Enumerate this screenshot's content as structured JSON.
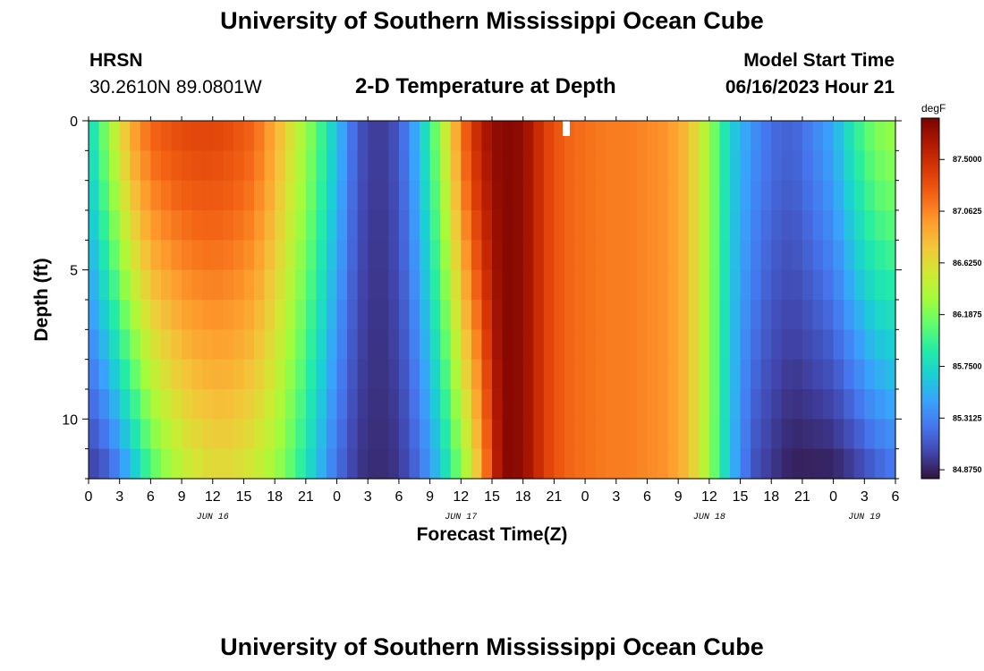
{
  "page": {
    "title_top": "University of Southern Mississippi Ocean Cube",
    "title_bottom": "University of Southern Mississippi Ocean Cube",
    "station": "HRSN",
    "coords": "30.2610N  89.0801W",
    "subtitle": "2-D Temperature at Depth",
    "model_start_label": "Model Start Time",
    "model_start_value": "06/16/2023 Hour 21"
  },
  "chart_data": {
    "type": "heatmap",
    "title": "2-D Temperature at Depth",
    "xlabel": "Forecast Time(Z)",
    "ylabel": "Depth (ft)",
    "x_hours_range": [
      0,
      78
    ],
    "x_tick_step_hours": 3,
    "x_tick_labels": [
      "0",
      "3",
      "6",
      "9",
      "12",
      "15",
      "18",
      "21",
      "0",
      "3",
      "6",
      "9",
      "12",
      "15",
      "18",
      "21",
      "0",
      "3",
      "6",
      "9",
      "12",
      "15",
      "18",
      "21",
      "0",
      "3",
      "6"
    ],
    "date_labels": [
      {
        "text": "JUN 16",
        "at_hour": 12
      },
      {
        "text": "JUN 17",
        "at_hour": 36
      },
      {
        "text": "JUN 18",
        "at_hour": 60
      },
      {
        "text": "JUN 19",
        "at_hour": 75
      }
    ],
    "y_range": [
      0,
      12
    ],
    "y_tick_labels": [
      "0",
      "5",
      "10"
    ],
    "y_tick_values": [
      0,
      5,
      10
    ],
    "colorbar": {
      "unit": "degF",
      "min": 84.8,
      "max": 87.85,
      "tick_labels": [
        "84.8750",
        "85.3125",
        "85.7500",
        "86.1875",
        "86.6250",
        "87.0625",
        "87.5000"
      ],
      "tick_values": [
        84.875,
        85.3125,
        85.75,
        86.1875,
        86.625,
        87.0625,
        87.5
      ],
      "colormap": [
        "#30123b",
        "#4145ab",
        "#4675ed",
        "#39a2fc",
        "#1bcfd4",
        "#24eca6",
        "#61fc6c",
        "#a4fc3b",
        "#d1e834",
        "#f3c63a",
        "#fe9b2d",
        "#f36315",
        "#d93806",
        "#b11901",
        "#7a0402"
      ]
    },
    "profile": {
      "depth_ft": [
        0,
        1,
        2,
        3,
        4,
        5,
        6,
        7,
        8,
        9,
        10,
        11,
        12
      ],
      "time_hours": [
        0,
        2,
        4,
        6,
        8,
        10,
        12,
        14,
        16,
        18,
        20,
        22,
        24,
        26,
        28,
        30,
        32,
        34,
        36,
        37,
        38,
        39,
        40,
        41,
        42,
        43,
        44,
        46,
        48,
        50,
        52,
        54,
        56,
        58,
        60,
        62,
        64,
        66,
        68,
        70,
        72,
        74,
        76,
        78
      ],
      "surface_degF": [
        85.7,
        86.3,
        86.9,
        87.2,
        87.3,
        87.35,
        87.35,
        87.3,
        87.2,
        86.9,
        86.5,
        86.1,
        85.6,
        85.1,
        84.95,
        85.1,
        85.6,
        86.3,
        87.1,
        87.4,
        87.6,
        87.75,
        87.8,
        87.8,
        87.75,
        87.6,
        87.4,
        87.2,
        87.15,
        87.1,
        87.1,
        87.05,
        87.0,
        86.8,
        86.3,
        85.7,
        85.4,
        85.2,
        85.15,
        85.3,
        85.5,
        85.9,
        86.2,
        86.3
      ],
      "bottom_degF": [
        84.95,
        85.1,
        85.5,
        86.0,
        86.3,
        86.5,
        86.6,
        86.6,
        86.5,
        86.3,
        86.0,
        85.6,
        85.2,
        84.95,
        84.9,
        84.95,
        85.2,
        85.6,
        86.2,
        86.5,
        86.9,
        87.4,
        87.8,
        87.8,
        87.75,
        87.6,
        87.4,
        87.2,
        87.15,
        87.1,
        87.1,
        87.05,
        87.0,
        86.8,
        86.3,
        85.6,
        85.1,
        84.95,
        84.85,
        84.85,
        84.85,
        84.95,
        85.1,
        85.2
      ]
    }
  }
}
